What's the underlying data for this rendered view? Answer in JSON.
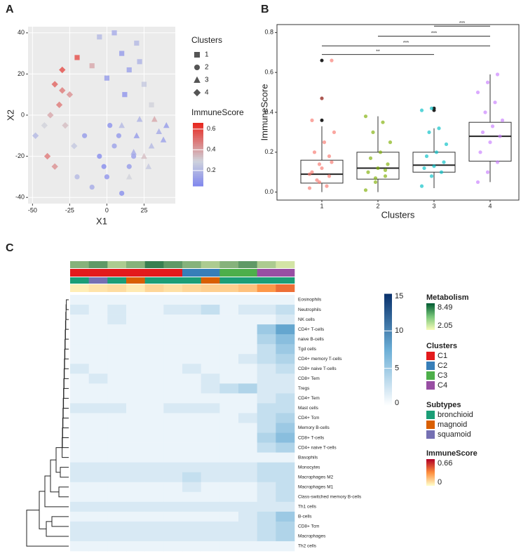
{
  "chart_data": [
    {
      "type": "scatter",
      "panel": "A",
      "xlabel": "X1",
      "ylabel": "X2",
      "xlim": [
        -53,
        46
      ],
      "ylim": [
        -43,
        43
      ],
      "xticks": [
        -50,
        -25,
        0,
        25
      ],
      "yticks": [
        -40,
        -20,
        0,
        20,
        40
      ],
      "grid": true,
      "legend_title": "Clusters",
      "colorbar_title": "ImmuneScore",
      "colorbar_lim": [
        0.05,
        0.66
      ],
      "colorbar_ticks": [
        0.2,
        0.4,
        0.6
      ],
      "colors": [
        "#7f86ee",
        "#cfd3dc",
        "#e8261d"
      ],
      "series": [
        {
          "name": "1",
          "shape": "square",
          "x": [
            -20,
            -5,
            5,
            10,
            15,
            20,
            25,
            30,
            0,
            -10,
            12,
            22
          ],
          "y": [
            28,
            38,
            40,
            30,
            22,
            35,
            15,
            5,
            18,
            24,
            10,
            26
          ],
          "score": [
            0.6,
            0.2,
            0.15,
            0.1,
            0.12,
            0.2,
            0.25,
            0.3,
            0.1,
            0.4,
            0.08,
            0.18
          ]
        },
        {
          "name": "2",
          "shape": "circle",
          "x": [
            -15,
            -5,
            0,
            5,
            10,
            15,
            -10,
            -20,
            2,
            8,
            -2,
            18
          ],
          "y": [
            -10,
            -20,
            -30,
            -15,
            -38,
            -25,
            -35,
            -30,
            -5,
            -10,
            -25,
            -20
          ],
          "score": [
            0.1,
            0.05,
            0.08,
            0.12,
            0.06,
            0.1,
            0.15,
            0.2,
            0.07,
            0.09,
            0.05,
            0.11
          ]
        },
        {
          "name": "3",
          "shape": "triangle",
          "x": [
            10,
            20,
            25,
            30,
            35,
            40,
            15,
            28,
            22,
            38,
            32,
            18
          ],
          "y": [
            -5,
            -10,
            -20,
            -15,
            -8,
            -5,
            -30,
            -25,
            -2,
            -12,
            -2,
            -18
          ],
          "score": [
            0.2,
            0.1,
            0.35,
            0.2,
            0.15,
            0.1,
            0.3,
            0.25,
            0.18,
            0.12,
            0.4,
            0.15
          ]
        },
        {
          "name": "4",
          "shape": "diamond",
          "x": [
            -48,
            -40,
            -35,
            -30,
            -32,
            -25,
            -38,
            -28,
            -42,
            -22,
            -35,
            -30
          ],
          "y": [
            -10,
            -20,
            15,
            22,
            5,
            10,
            0,
            -5,
            -5,
            -15,
            -25,
            12
          ],
          "score": [
            0.2,
            0.5,
            0.55,
            0.6,
            0.5,
            0.45,
            0.4,
            0.35,
            0.3,
            0.25,
            0.45,
            0.5
          ]
        }
      ]
    },
    {
      "type": "box",
      "panel": "B",
      "xlabel": "Clusters",
      "ylabel": "ImmuneScore",
      "categories": [
        "1",
        "2",
        "3",
        "4"
      ],
      "colors": [
        "#f8766d",
        "#7cae00",
        "#00bfc4",
        "#c77cff"
      ],
      "ylim": [
        -0.04,
        0.84
      ],
      "yticks": [
        {
          "value": 0,
          "label": "0.0"
        },
        0.2,
        0.4,
        0.6,
        0.8
      ],
      "boxes": [
        {
          "whislo": 0,
          "q1": 0.045,
          "med": 0.09,
          "q3": 0.16,
          "whishi": 0.33,
          "outliers": [
            0.36,
            0.47,
            0.66
          ],
          "points": [
            0.02,
            0.05,
            0.08,
            0.1,
            0.12,
            0.15,
            0.2,
            0.25,
            0.3,
            0.06,
            0.03,
            0.09,
            0.14,
            0.18,
            0.36,
            0.47,
            0.66
          ]
        },
        {
          "whislo": 0,
          "q1": 0.065,
          "med": 0.12,
          "q3": 0.2,
          "whishi": 0.38,
          "outliers": [],
          "points": [
            0.01,
            0.05,
            0.08,
            0.1,
            0.12,
            0.14,
            0.17,
            0.2,
            0.25,
            0.3,
            0.35,
            0.38,
            0.07,
            0.11
          ]
        },
        {
          "whislo": 0.02,
          "q1": 0.1,
          "med": 0.135,
          "q3": 0.2,
          "whishi": 0.32,
          "outliers": [
            0.41,
            0.42
          ],
          "points": [
            0.03,
            0.08,
            0.1,
            0.12,
            0.13,
            0.15,
            0.18,
            0.2,
            0.24,
            0.3,
            0.32,
            0.41,
            0.42
          ]
        },
        {
          "whislo": 0.05,
          "q1": 0.155,
          "med": 0.28,
          "q3": 0.35,
          "whishi": 0.59,
          "outliers": [],
          "points": [
            0.05,
            0.1,
            0.15,
            0.2,
            0.25,
            0.28,
            0.3,
            0.33,
            0.36,
            0.4,
            0.45,
            0.5,
            0.55,
            0.59
          ]
        }
      ],
      "significance": [
        {
          "from": 2,
          "to": 3,
          "y": 0.832,
          "label": "***"
        },
        {
          "from": 1,
          "to": 3,
          "y": 0.782,
          "label": "***"
        },
        {
          "from": 0,
          "to": 3,
          "y": 0.733,
          "label": "***"
        },
        {
          "from": 0,
          "to": 2,
          "y": 0.69,
          "label": "**"
        }
      ]
    },
    {
      "type": "heatmap",
      "panel": "C",
      "rows": [
        "Eosinophils",
        "Neutrophils",
        "NK cells",
        "CD4+ T-cells",
        "naive B-cells",
        "Tgd cells",
        "CD4+ memory T-cells",
        "CD8+ naive T-cells",
        "CD8+ Tem",
        "Tregs",
        "CD4+ Tem",
        "Mast cells",
        "CD4+ Tcm",
        "Memory B-cells",
        "CD8+ T-cells",
        "CD4+ naive T-cells",
        "Basophils",
        "Monocytes",
        "Macrophages M2",
        "Macrophages M1",
        "Class-switched memory B-cells",
        "Th1 cells",
        "B-cells",
        "CD8+ Tcm",
        "Macrophages",
        "Th2 cells"
      ],
      "values": [
        [
          1,
          1,
          1,
          1,
          1,
          1,
          1,
          1,
          1,
          1,
          1,
          1
        ],
        [
          2,
          1,
          2,
          1,
          1,
          2,
          2,
          3,
          1,
          2,
          2,
          3
        ],
        [
          1,
          1,
          2,
          1,
          1,
          1,
          1,
          1,
          1,
          1,
          1,
          2
        ],
        [
          1,
          1,
          1,
          1,
          1,
          1,
          1,
          1,
          1,
          1,
          5,
          8
        ],
        [
          1,
          1,
          1,
          1,
          1,
          1,
          1,
          1,
          1,
          1,
          4,
          6
        ],
        [
          1,
          1,
          1,
          1,
          1,
          1,
          1,
          1,
          1,
          1,
          3,
          5
        ],
        [
          1,
          1,
          1,
          1,
          1,
          1,
          1,
          1,
          1,
          2,
          3,
          4
        ],
        [
          2,
          1,
          1,
          1,
          1,
          1,
          2,
          1,
          1,
          1,
          2,
          3
        ],
        [
          1,
          2,
          1,
          1,
          1,
          1,
          1,
          2,
          1,
          1,
          2,
          2
        ],
        [
          1,
          1,
          1,
          1,
          1,
          1,
          1,
          2,
          3,
          4,
          2,
          2
        ],
        [
          1,
          1,
          1,
          1,
          1,
          1,
          1,
          1,
          1,
          1,
          2,
          3
        ],
        [
          2,
          2,
          2,
          1,
          1,
          2,
          2,
          2,
          1,
          1,
          3,
          3
        ],
        [
          1,
          1,
          1,
          1,
          1,
          1,
          1,
          1,
          1,
          2,
          3,
          4
        ],
        [
          1,
          1,
          1,
          1,
          1,
          1,
          1,
          1,
          1,
          1,
          3,
          5
        ],
        [
          1,
          1,
          1,
          1,
          1,
          1,
          1,
          1,
          1,
          1,
          4,
          6
        ],
        [
          1,
          1,
          1,
          1,
          1,
          1,
          1,
          1,
          1,
          1,
          3,
          4
        ],
        [
          1,
          1,
          1,
          1,
          1,
          1,
          1,
          1,
          1,
          1,
          1,
          1
        ],
        [
          2,
          2,
          2,
          2,
          2,
          2,
          2,
          2,
          2,
          2,
          3,
          3
        ],
        [
          2,
          2,
          2,
          2,
          2,
          2,
          3,
          2,
          2,
          2,
          3,
          3
        ],
        [
          1,
          1,
          1,
          1,
          1,
          1,
          2,
          1,
          1,
          1,
          2,
          3
        ],
        [
          1,
          1,
          1,
          1,
          1,
          1,
          1,
          1,
          1,
          1,
          2,
          3
        ],
        [
          2,
          2,
          2,
          2,
          2,
          2,
          2,
          2,
          2,
          2,
          2,
          2
        ],
        [
          1,
          1,
          1,
          1,
          1,
          1,
          1,
          1,
          1,
          2,
          3,
          5
        ],
        [
          2,
          2,
          2,
          2,
          2,
          2,
          2,
          2,
          2,
          2,
          3,
          4
        ],
        [
          2,
          2,
          2,
          2,
          2,
          2,
          2,
          2,
          2,
          2,
          3,
          4
        ],
        [
          1,
          1,
          1,
          1,
          1,
          1,
          1,
          1,
          1,
          1,
          1,
          1
        ]
      ],
      "clim": [
        0,
        15
      ],
      "cticks": [
        0,
        5,
        10,
        15
      ],
      "column_clusters": [
        0,
        0,
        0,
        0,
        0,
        0,
        1,
        1,
        2,
        2,
        3,
        3
      ],
      "column_subtypes": [
        0,
        2,
        0,
        1,
        0,
        0,
        0,
        1,
        0,
        0,
        0,
        0
      ],
      "metabolism": [
        5,
        6,
        4,
        5,
        7,
        6,
        5,
        4,
        5,
        6,
        4,
        3
      ],
      "immune_score": [
        0.05,
        0.08,
        0.1,
        0.06,
        0.12,
        0.09,
        0.12,
        0.14,
        0.14,
        0.18,
        0.3,
        0.4
      ],
      "metabolism_title": "Metabolism",
      "metabolism_range": [
        2.05,
        8.49
      ],
      "clusters_title": "Clusters",
      "clusters": [
        {
          "name": "C1",
          "color": "#e31a1c"
        },
        {
          "name": "C2",
          "color": "#377eb8"
        },
        {
          "name": "C3",
          "color": "#4daf4a"
        },
        {
          "name": "C4",
          "color": "#984ea3"
        }
      ],
      "subtypes_title": "Subtypes",
      "subtypes": [
        {
          "name": "bronchioid",
          "color": "#1b9e77"
        },
        {
          "name": "magnoid",
          "color": "#d95f02"
        },
        {
          "name": "squamoid",
          "color": "#7570b3"
        }
      ],
      "immune_title": "ImmuneScore",
      "immune_range": [
        0,
        0.66
      ]
    }
  ]
}
